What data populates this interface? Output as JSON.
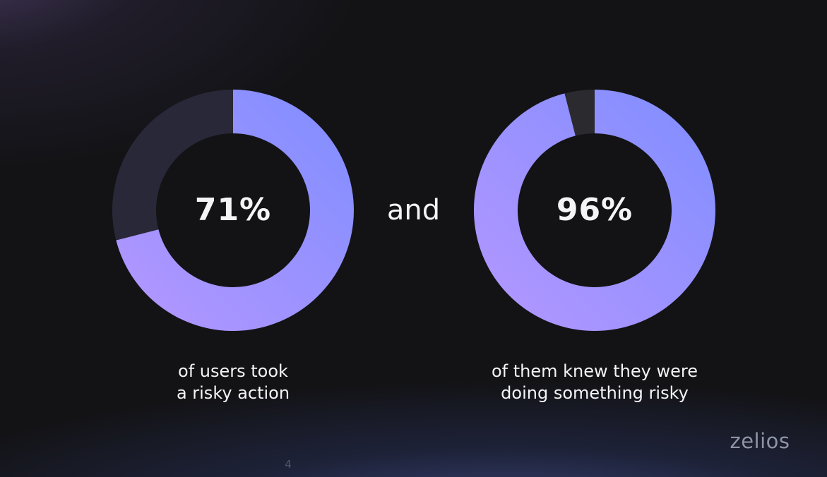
{
  "chart_data": [
    {
      "type": "pie",
      "value": 71,
      "value_label": "71%",
      "caption": [
        "of users took",
        "a risky action"
      ]
    },
    {
      "type": "pie",
      "value": 96,
      "value_label": "96%",
      "caption": [
        "of them knew they were",
        "doing something risky"
      ]
    }
  ],
  "connector": "and",
  "logo": "zelios",
  "page_number": "4",
  "colors": {
    "background": "#131316",
    "fill_start": "#7f8dff",
    "fill_end": "#b597ff",
    "remainder_left": "#292839",
    "remainder_right": "#2b2b2f",
    "text": "#f4f4f7",
    "logo": "#8e93a6"
  }
}
